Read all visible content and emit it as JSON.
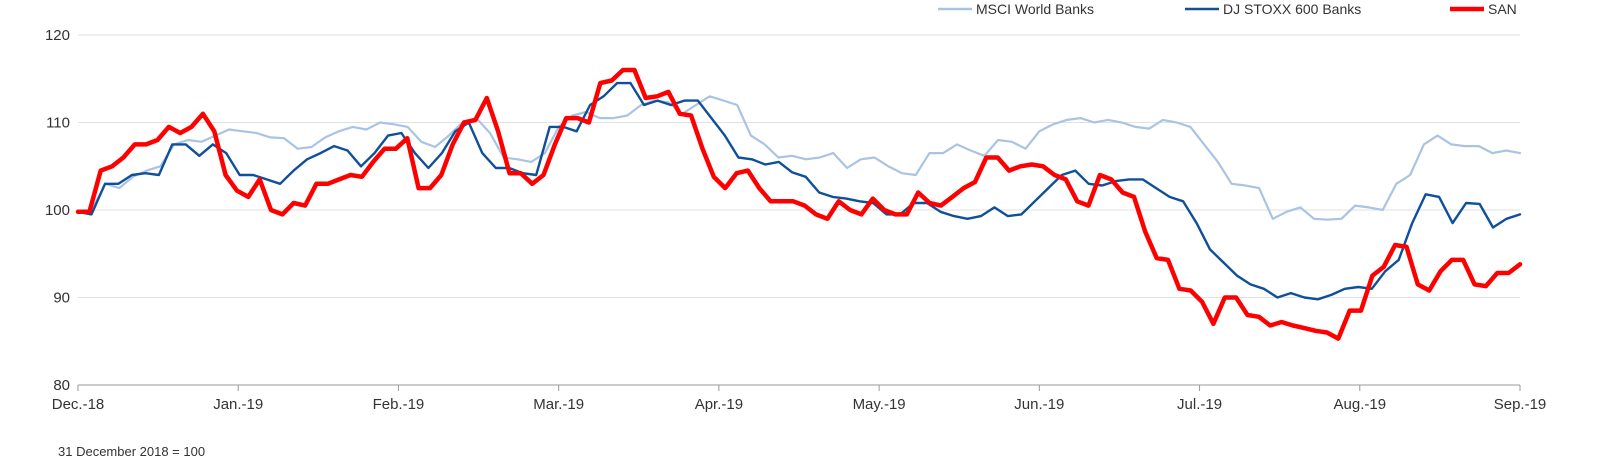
{
  "chart_data": {
    "type": "line",
    "x_ticks": [
      "Dec.-18",
      "Jan.-19",
      "Feb.-19",
      "Mar.-19",
      "Apr.-19",
      "May.-19",
      "Jun.-19",
      "Jul.-19",
      "Aug.-19",
      "Sep.-19"
    ],
    "y_ticks": [
      80,
      90,
      100,
      110,
      120
    ],
    "ylim": [
      80,
      120
    ],
    "grid": "horizontal",
    "legend_position": "top-right",
    "note": "31 December 2018 = 100",
    "series": [
      {
        "name": "MSCI World Banks",
        "color": "#a9c4e3",
        "values": [
          99.8,
          100.0,
          103.0,
          102.5,
          103.8,
          104.5,
          105.0,
          107.5,
          108.0,
          107.8,
          108.5,
          109.2,
          109.0,
          108.8,
          108.3,
          108.2,
          107.0,
          107.2,
          108.3,
          109.0,
          109.5,
          109.2,
          110.0,
          109.8,
          109.5,
          107.8,
          107.2,
          108.5,
          110.0,
          110.5,
          108.8,
          106.0,
          105.8,
          105.5,
          106.5,
          109.5,
          110.8,
          111.2,
          110.5,
          110.5,
          110.8,
          112.0,
          112.5,
          112.3,
          111.0,
          112.0,
          113.0,
          112.5,
          112.0,
          108.5,
          107.5,
          106.0,
          106.2,
          105.8,
          106.0,
          106.5,
          104.8,
          105.8,
          106.0,
          105.0,
          104.2,
          104.0,
          106.5,
          106.5,
          107.5,
          106.8,
          106.2,
          108.0,
          107.8,
          107.0,
          109.0,
          109.8,
          110.3,
          110.5,
          110.0,
          110.3,
          110.0,
          109.5,
          109.3,
          110.3,
          110.0,
          109.5,
          107.5,
          105.5,
          103.0,
          102.8,
          102.5,
          99.0,
          99.8,
          100.3,
          99.0,
          98.9,
          99.0,
          100.5,
          100.3,
          100.0,
          103.0,
          104.0,
          107.5,
          108.5,
          107.5,
          107.3,
          107.3,
          106.5,
          106.8,
          106.5
        ]
      },
      {
        "name": "DJ STOXX 600 Banks",
        "color": "#104f99",
        "values": [
          99.8,
          99.5,
          103.0,
          103.0,
          104.0,
          104.2,
          104.0,
          107.5,
          107.5,
          106.2,
          107.5,
          106.5,
          104.0,
          104.0,
          103.5,
          103.0,
          104.5,
          105.8,
          106.5,
          107.3,
          106.8,
          105.0,
          106.5,
          108.5,
          108.8,
          106.5,
          104.8,
          106.5,
          109.0,
          110.0,
          106.5,
          104.8,
          104.8,
          104.2,
          104.0,
          109.5,
          109.5,
          109.0,
          112.0,
          113.0,
          114.5,
          114.5,
          112.0,
          112.5,
          112.0,
          112.5,
          112.5,
          110.5,
          108.5,
          106.0,
          105.8,
          105.2,
          105.5,
          104.3,
          103.8,
          102.0,
          101.5,
          101.3,
          101.0,
          100.8,
          99.5,
          99.5,
          100.8,
          100.8,
          99.8,
          99.3,
          99.0,
          99.3,
          100.3,
          99.3,
          99.5,
          101.0,
          102.5,
          104.0,
          104.5,
          103.0,
          102.8,
          103.3,
          103.5,
          103.5,
          102.5,
          101.5,
          101.0,
          98.5,
          95.5,
          94.0,
          92.5,
          91.5,
          91.0,
          90.0,
          90.5,
          90.0,
          89.8,
          90.3,
          91.0,
          91.2,
          91.0,
          93.0,
          94.3,
          98.5,
          101.8,
          101.5,
          98.5,
          100.8,
          100.7,
          98.0,
          99.0,
          99.5
        ]
      },
      {
        "name": "SAN",
        "color": "#ff0000",
        "values": [
          99.8,
          99.8,
          104.5,
          105.0,
          106.0,
          107.5,
          107.5,
          108.0,
          109.5,
          108.8,
          109.5,
          111.0,
          109.0,
          104.0,
          102.2,
          101.5,
          103.5,
          100.0,
          99.5,
          100.8,
          100.5,
          103.0,
          103.0,
          103.5,
          104.0,
          103.8,
          105.5,
          107.0,
          107.0,
          108.2,
          102.5,
          102.5,
          104.0,
          107.5,
          110.0,
          110.3,
          112.8,
          109.0,
          104.2,
          104.2,
          103.0,
          104.0,
          107.5,
          110.5,
          110.5,
          110.0,
          114.5,
          114.8,
          116.0,
          116.0,
          112.8,
          113.0,
          113.5,
          111.0,
          110.8,
          107.0,
          103.8,
          102.5,
          104.2,
          104.5,
          102.5,
          101.0,
          101.0,
          101.0,
          100.5,
          99.5,
          99.0,
          101.0,
          100.0,
          99.5,
          101.3,
          100.0,
          99.5,
          99.5,
          102.0,
          100.8,
          100.5,
          101.5,
          102.5,
          103.2,
          106.0,
          106.0,
          104.5,
          105.0,
          105.2,
          105.0,
          104.0,
          103.5,
          101.0,
          100.5,
          104.0,
          103.5,
          102.0,
          101.5,
          97.5,
          94.5,
          94.3,
          91.0,
          90.8,
          89.5,
          87.0,
          90.0,
          90.0,
          88.0,
          87.8,
          86.8,
          87.2,
          86.8,
          86.5,
          86.2,
          86.0,
          85.3,
          88.5,
          88.5,
          92.5,
          93.5,
          96.0,
          95.8,
          91.5,
          90.8,
          93.0,
          94.3,
          94.3,
          91.5,
          91.3,
          92.8,
          92.8,
          93.8
        ]
      }
    ]
  }
}
